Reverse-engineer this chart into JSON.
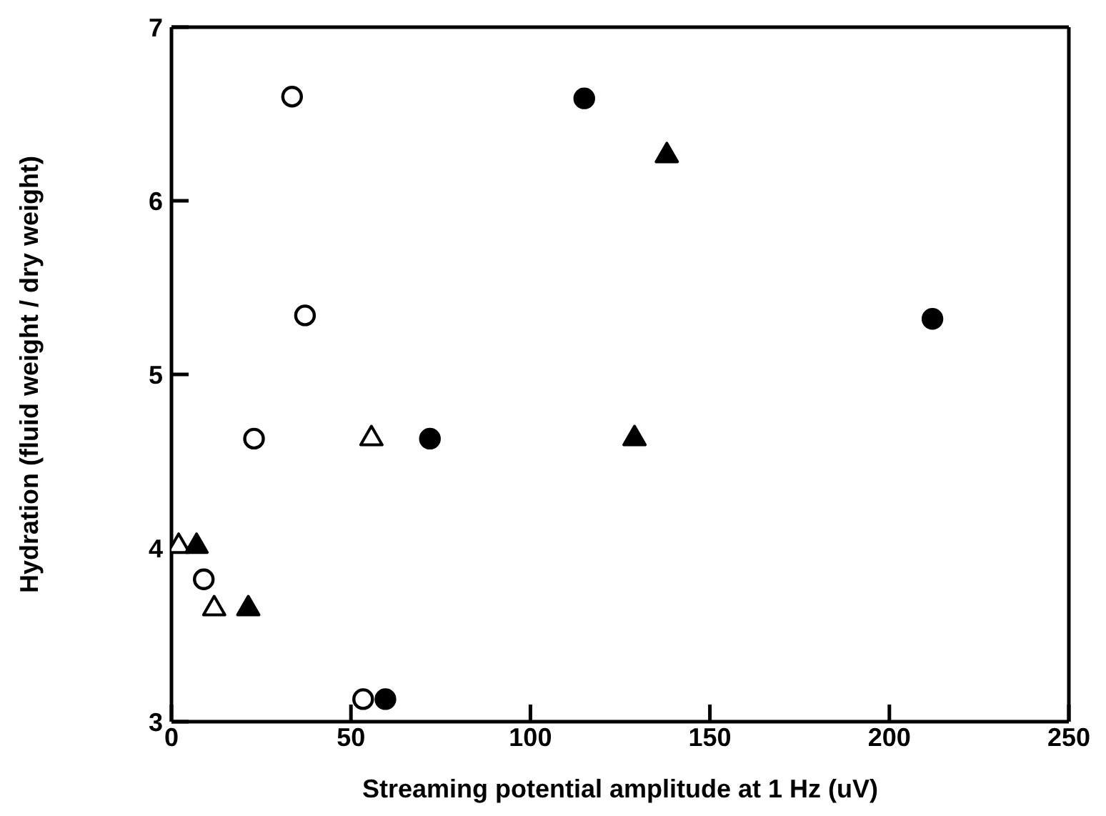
{
  "chart_data": {
    "type": "scatter",
    "xlabel": "Streaming potential amplitude at 1 Hz (uV)",
    "ylabel": "Hydration (fluid weight / dry weight)",
    "xlim": [
      0,
      250
    ],
    "xticks": [
      0,
      50,
      100,
      150,
      200,
      250
    ],
    "ylim": [
      3,
      7
    ],
    "yticks": [
      3,
      4,
      5,
      6,
      7
    ],
    "legend": false,
    "series": [
      {
        "color": "#ffffff",
        "marker": "circle",
        "x": [
          33.6,
          37.2,
          23,
          9,
          53.4
        ],
        "values": [
          6.6,
          5.34,
          4.63,
          3.82,
          3.13
        ]
      },
      {
        "color": "#000000",
        "marker": "circle",
        "x": [
          115,
          72,
          59.6,
          212
        ],
        "values": [
          6.59,
          4.63,
          3.13,
          5.32
        ]
      },
      {
        "color": "#ffffff",
        "marker": "triangle",
        "x": [
          2,
          11.9,
          55.7
        ],
        "values": [
          4.02,
          3.66,
          4.64
        ]
      },
      {
        "color": "#000000",
        "marker": "triangle",
        "x": [
          7,
          21.4,
          138,
          129
        ],
        "values": [
          4.02,
          3.66,
          6.27,
          4.64
        ]
      }
    ]
  }
}
